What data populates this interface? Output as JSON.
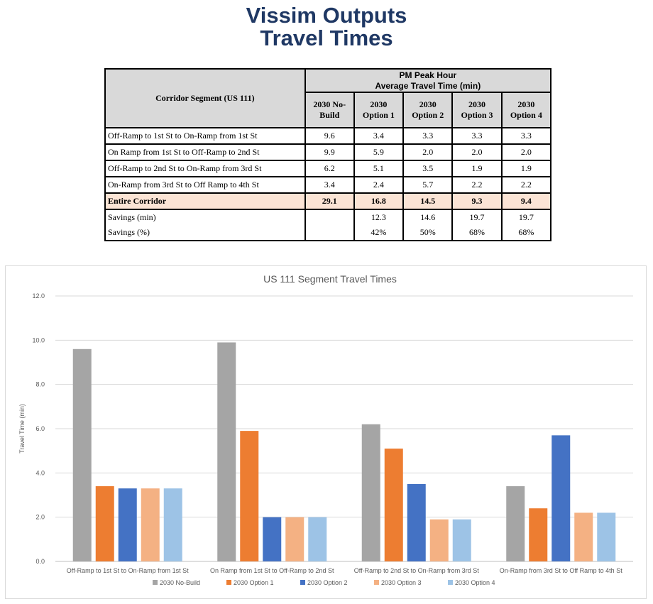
{
  "page": {
    "title_line1": "Vissim Outputs",
    "title_line2": "Travel Times"
  },
  "table": {
    "corridor_header": "Corridor Segment (US 111)",
    "peak_header_line1": "PM Peak Hour",
    "peak_header_line2": "Average Travel Time (min)",
    "option_headers": [
      [
        "2030 No-",
        "Build"
      ],
      [
        "2030",
        "Option 1"
      ],
      [
        "2030",
        "Option 2"
      ],
      [
        "2030",
        "Option 3"
      ],
      [
        "2030",
        "Option 4"
      ]
    ],
    "rows": [
      {
        "segment": "Off-Ramp to 1st St to On-Ramp from 1st St",
        "values": [
          "9.6",
          "3.4",
          "3.3",
          "3.3",
          "3.3"
        ]
      },
      {
        "segment": "On Ramp from 1st St to Off-Ramp to 2nd St",
        "values": [
          "9.9",
          "5.9",
          "2.0",
          "2.0",
          "2.0"
        ]
      },
      {
        "segment": "Off-Ramp to 2nd St to On-Ramp from 3rd St",
        "values": [
          "6.2",
          "5.1",
          "3.5",
          "1.9",
          "1.9"
        ]
      },
      {
        "segment": "On-Ramp from 3rd St to Off Ramp to 4th St",
        "values": [
          "3.4",
          "2.4",
          "5.7",
          "2.2",
          "2.2"
        ]
      }
    ],
    "entire_corridor": {
      "label": "Entire Corridor",
      "values": [
        "29.1",
        "16.8",
        "14.5",
        "9.3",
        "9.4"
      ]
    },
    "savings_min": {
      "label": "Savings (min)",
      "values": [
        "",
        "12.3",
        "14.6",
        "19.7",
        "19.7"
      ]
    },
    "savings_pct": {
      "label": "Savings (%)",
      "values": [
        "",
        "42%",
        "50%",
        "68%",
        "68%"
      ]
    }
  },
  "chart_data": {
    "type": "bar",
    "title": "US 111 Segment Travel Times",
    "xlabel": "",
    "ylabel": "Travel Time (min)",
    "ylim": [
      0,
      12
    ],
    "yticks": [
      "0.0",
      "2.0",
      "4.0",
      "6.0",
      "8.0",
      "10.0",
      "12.0"
    ],
    "grid": true,
    "legend_position": "bottom",
    "categories": [
      "Off-Ramp to 1st St to On-Ramp from 1st St",
      "On Ramp from 1st St to Off-Ramp to 2nd St",
      "Off-Ramp to 2nd St to On-Ramp from 3rd St",
      "On-Ramp from 3rd St to Off Ramp to 4th St"
    ],
    "series": [
      {
        "name": "2030 No-Build",
        "color": "#a5a5a5",
        "values": [
          9.6,
          9.9,
          6.2,
          3.4
        ]
      },
      {
        "name": "2030 Option 1",
        "color": "#ed7d31",
        "values": [
          3.4,
          5.9,
          5.1,
          2.4
        ]
      },
      {
        "name": "2030 Option 2",
        "color": "#4472c4",
        "values": [
          3.3,
          2.0,
          3.5,
          5.7
        ]
      },
      {
        "name": "2030 Option 3",
        "color": "#f4b183",
        "values": [
          3.3,
          2.0,
          1.9,
          2.2
        ]
      },
      {
        "name": "2030 Option 4",
        "color": "#9dc3e6",
        "values": [
          3.3,
          2.0,
          1.9,
          2.2
        ]
      }
    ]
  }
}
